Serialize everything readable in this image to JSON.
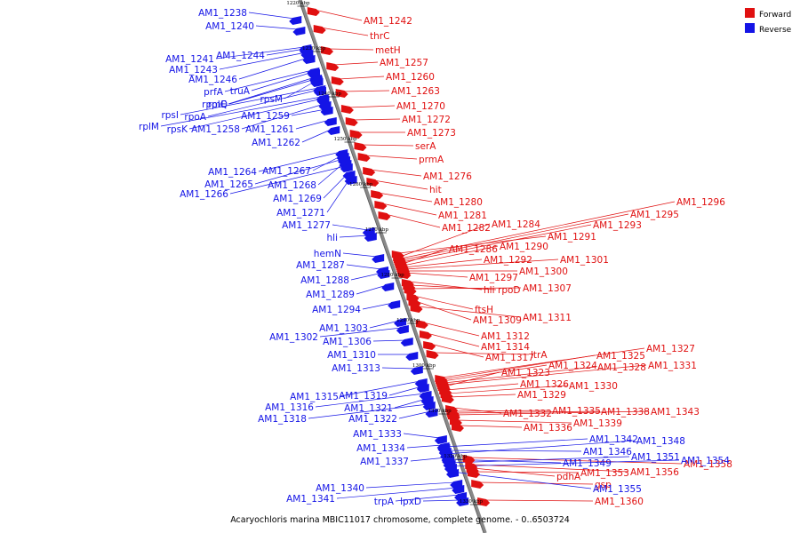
{
  "caption": "Acaryochloris marina MBIC11017 chromosome, complete genome. - 0..6503724",
  "colors": {
    "forward": "#e01010",
    "reverse": "#1414e6",
    "backbone": "#888888"
  },
  "legend": [
    {
      "label": "Forward",
      "color": "#e01010"
    },
    {
      "label": "Reverse",
      "color": "#1414e6"
    }
  ],
  "ticks": [
    "1220 kbp",
    "1230 kbp",
    "1240 kbp",
    "1250 kbp",
    "1260 kbp",
    "1270 kbp",
    "1280 kbp",
    "1290 kbp",
    "1300 kbp",
    "1310 kbp",
    "1320 kbp",
    "1330 kbp"
  ],
  "forward_genes": [
    "AM1_1242",
    "thrC",
    "metH",
    "AM1_1257",
    "AM1_1260",
    "AM1_1263",
    "AM1_1270",
    "AM1_1272",
    "AM1_1273",
    "serA",
    "prmA",
    "AM1_1276",
    "hit",
    "AM1_1280",
    "AM1_1281",
    "AM1_1282",
    "AM1_1284",
    "AM1_1296",
    "AM1_1295",
    "AM1_1293",
    "AM1_1291",
    "AM1_1286",
    "AM1_1290",
    "AM1_1292",
    "AM1_1301",
    "AM1_1300",
    "AM1_1297",
    "hli",
    "rpoD",
    "AM1_1307",
    "ftsH",
    "AM1_1309",
    "AM1_1311",
    "AM1_1312",
    "AM1_1314",
    "AM1_1317",
    "ltrA",
    "AM1_1327",
    "AM1_1325",
    "AM1_1324",
    "AM1_1328",
    "AM1_1331",
    "AM1_1323",
    "AM1_1326",
    "AM1_1330",
    "AM1_1329",
    "AM1_1332",
    "AM1_1335",
    "AM1_1338",
    "AM1_1343",
    "AM1_1339",
    "AM1_1336",
    "AM1_1358",
    "AM1_1356",
    "pdhA",
    "AM1_1353",
    "gsp",
    "AM1_1360"
  ],
  "reverse_genes": [
    "AM1_1238",
    "AM1_1240",
    "AM1_1241",
    "AM1_1244",
    "AM1_1243",
    "AM1_1246",
    "prfA",
    "truA",
    "rpmE",
    "rplQ",
    "rpsM",
    "rpsI",
    "rpoA",
    "rplM",
    "rpsK",
    "AM1_1258",
    "AM1_1259",
    "AM1_1261",
    "AM1_1262",
    "AM1_1264",
    "AM1_1267",
    "AM1_1265",
    "AM1_1268",
    "AM1_1266",
    "AM1_1269",
    "AM1_1271",
    "AM1_1277",
    "hli",
    "hemN",
    "AM1_1287",
    "AM1_1288",
    "AM1_1289",
    "AM1_1294",
    "AM1_1303",
    "AM1_1302",
    "AM1_1306",
    "AM1_1310",
    "AM1_1313",
    "AM1_1315",
    "AM1_1319",
    "AM1_1316",
    "AM1_1321",
    "AM1_1318",
    "AM1_1322",
    "AM1_1333",
    "AM1_1334",
    "AM1_1337",
    "AM1_1342",
    "AM1_1346",
    "AM1_1348",
    "AM1_1349",
    "AM1_1351",
    "AM1_1354",
    "AM1_1355",
    "AM1_1340",
    "AM1_1341",
    "trpA",
    "lpxD"
  ]
}
